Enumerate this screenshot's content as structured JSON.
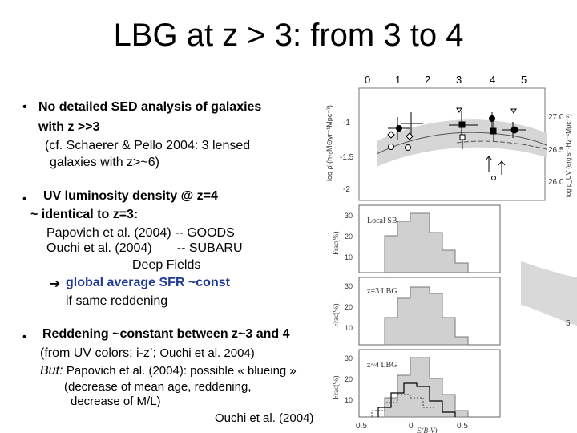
{
  "slide": {
    "title": "LBG at z > 3: from 3 to 4",
    "top_axis_ticks": [
      "0",
      "1",
      "2",
      "3",
      "4",
      "5"
    ],
    "bullet_char": "•",
    "bullet1": {
      "line1": "No detailed SED analysis of galaxies",
      "line2": "with z >>3",
      "sub1": "(cf. Schaerer & Pello 2004: 3 lensed",
      "sub2": "galaxies with z>~6)"
    },
    "bullet2": {
      "line1": "UV luminosity density @ z=4",
      "line2": "~ identical to z=3:",
      "line3": "Papovich et al. (2004) -- GOODS",
      "line4": "Ouchi et al. (2004)       -- SUBARU",
      "line5": "Deep Fields",
      "arrow": "➔",
      "line6": "global average SFR ~const",
      "line7": "if same reddening"
    },
    "bullet3": {
      "line1": "Reddening ~constant between z~3 and 4",
      "line2_a": "(from UV colors: i-z’; ",
      "line2_b": "Ouchi et al. 2004)",
      "line3_a": "But: ",
      "line3_b": "Papovich et al. (2004): possible « blueing »",
      "line4": "(decrease of mean age, reddening,",
      "line5": "decrease of M/L)"
    },
    "credit": "Ouchi et al. (2004)"
  },
  "figure_top": {
    "ylabel": "log ρ̇ (h₇₀M⊙yr⁻¹Mpc⁻³)",
    "right_ylabel": "log ρ_UV (erg s⁻¹Hz⁻¹Mpc⁻³)",
    "y_ticks": [
      "-1",
      "-1.5",
      "-2"
    ],
    "right_ticks": [
      "27.0",
      "26.5",
      "26.0"
    ]
  },
  "figure_hist": {
    "ylabel": "Frac(%)",
    "panels": [
      {
        "label": "Local SB",
        "ticks": [
          "30",
          "20",
          "10"
        ]
      },
      {
        "label": "z=3 LBG",
        "ticks": [
          "30",
          "20",
          "10"
        ]
      },
      {
        "label": "z~4 LBG",
        "ticks": [
          "30",
          "20",
          "10"
        ]
      }
    ],
    "x_ticks": [
      "0.5",
      "0",
      "0.5"
    ],
    "xlabel": "E(B-V)",
    "side_tick": "5"
  }
}
